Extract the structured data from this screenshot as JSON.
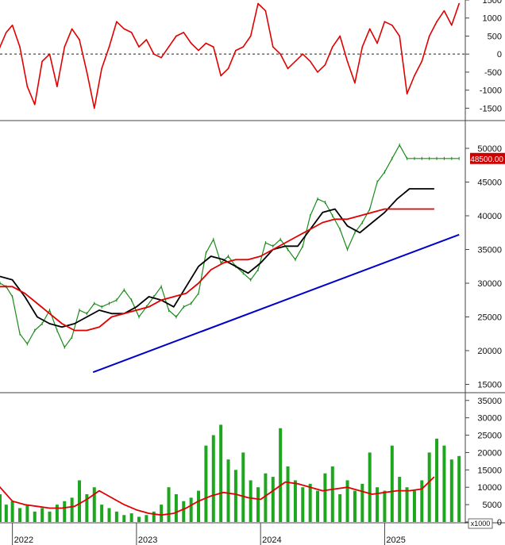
{
  "chart_data": [
    {
      "type": "line",
      "panel": "oscillator",
      "ylim": [
        -1800,
        1500
      ],
      "ticks": [
        "1500",
        "1000",
        "500",
        "0",
        "-500",
        "-1000",
        "-1500"
      ],
      "tick_values": [
        1500,
        1000,
        500,
        0,
        -500,
        -1000,
        -1500
      ],
      "reference_line": 0,
      "series": [
        {
          "color": "#e00000",
          "x": [
            2021.8,
            2021.85,
            2021.9,
            2021.95,
            2022.0,
            2022.06,
            2022.12,
            2022.18,
            2022.24,
            2022.3,
            2022.36,
            2022.42,
            2022.48,
            2022.54,
            2022.6,
            2022.66,
            2022.72,
            2022.78,
            2022.84,
            2022.9,
            2022.96,
            2023.02,
            2023.08,
            2023.14,
            2023.2,
            2023.26,
            2023.32,
            2023.38,
            2023.44,
            2023.5,
            2023.56,
            2023.62,
            2023.68,
            2023.74,
            2023.8,
            2023.86,
            2023.92,
            2023.98,
            2024.04,
            2024.1,
            2024.16,
            2024.22,
            2024.28,
            2024.34,
            2024.4,
            2024.46,
            2024.52,
            2024.58,
            2024.64,
            2024.7,
            2024.76,
            2024.82,
            2024.88,
            2024.94,
            2025.0,
            2025.06,
            2025.12,
            2025.18,
            2025.24,
            2025.3,
            2025.36,
            2025.42,
            2025.48,
            2025.54,
            2025.6
          ],
          "values": [
            -600,
            -300,
            200,
            600,
            800,
            200,
            -900,
            -1400,
            -200,
            0,
            -900,
            200,
            700,
            400,
            -500,
            -1500,
            -400,
            200,
            900,
            700,
            600,
            200,
            400,
            0,
            -100,
            200,
            500,
            600,
            300,
            100,
            300,
            200,
            -600,
            -400,
            100,
            200,
            500,
            1400,
            1200,
            200,
            0,
            -400,
            -200,
            0,
            -200,
            -500,
            -300,
            200,
            500,
            -200,
            -800,
            200,
            700,
            300,
            900,
            800,
            500,
            -1100,
            -600,
            -200,
            500,
            900,
            1200,
            800,
            1400
          ]
        }
      ]
    },
    {
      "type": "line",
      "panel": "price",
      "ylim": [
        14000,
        54000
      ],
      "ticks": [
        "50000",
        "45000",
        "40000",
        "35000",
        "30000",
        "25000",
        "20000",
        "15000"
      ],
      "tick_values": [
        50000,
        45000,
        40000,
        35000,
        30000,
        25000,
        20000,
        15000
      ],
      "last_price_label": "48500.00",
      "last_price_color": "#cc0000",
      "series": [
        {
          "color": "#1a8c1a",
          "x": [
            2021.8,
            2021.85,
            2021.9,
            2021.95,
            2022.0,
            2022.06,
            2022.12,
            2022.18,
            2022.24,
            2022.3,
            2022.36,
            2022.42,
            2022.48,
            2022.54,
            2022.6,
            2022.66,
            2022.72,
            2022.78,
            2022.84,
            2022.9,
            2022.96,
            2023.02,
            2023.08,
            2023.14,
            2023.2,
            2023.26,
            2023.32,
            2023.38,
            2023.44,
            2023.5,
            2023.56,
            2023.62,
            2023.68,
            2023.74,
            2023.8,
            2023.86,
            2023.92,
            2023.98,
            2024.04,
            2024.1,
            2024.16,
            2024.22,
            2024.28,
            2024.34,
            2024.4,
            2024.46,
            2024.52,
            2024.58,
            2024.64,
            2024.7,
            2024.76,
            2024.82,
            2024.88,
            2024.94,
            2025.0,
            2025.06,
            2025.12,
            2025.18,
            2025.24,
            2025.3,
            2025.36,
            2025.42,
            2025.48,
            2025.54,
            2025.6
          ],
          "values": [
            31000,
            33000,
            30000,
            29500,
            28000,
            22500,
            21000,
            23000,
            24000,
            26000,
            23000,
            20500,
            22000,
            26000,
            25500,
            27000,
            26500,
            27000,
            27500,
            29000,
            27500,
            25000,
            26500,
            28000,
            29500,
            26000,
            25000,
            26500,
            27000,
            28500,
            34500,
            36500,
            33000,
            34000,
            32500,
            31500,
            30500,
            32000,
            36000,
            35500,
            36500,
            35000,
            33500,
            35500,
            40000,
            42500,
            42000,
            40000,
            38000,
            35000,
            37500,
            39000,
            41000,
            45000,
            46500,
            48500,
            50500,
            48500,
            48500,
            48500,
            48500,
            48500,
            48500,
            48500,
            48500
          ]
        },
        {
          "color": "#000000",
          "x": [
            2021.8,
            2021.9,
            2022.0,
            2022.1,
            2022.2,
            2022.3,
            2022.4,
            2022.5,
            2022.6,
            2022.7,
            2022.8,
            2022.9,
            2023.0,
            2023.1,
            2023.2,
            2023.3,
            2023.4,
            2023.5,
            2023.6,
            2023.7,
            2023.8,
            2023.9,
            2024.0,
            2024.1,
            2024.2,
            2024.3,
            2024.4,
            2024.5,
            2024.6,
            2024.7,
            2024.8,
            2024.9,
            2025.0,
            2025.1,
            2025.2,
            2025.3,
            2025.4
          ],
          "values": [
            30000,
            31000,
            30500,
            28000,
            25000,
            24000,
            23500,
            24000,
            25000,
            26000,
            25500,
            25500,
            26500,
            28000,
            27500,
            26500,
            29500,
            32500,
            34000,
            33500,
            32500,
            31500,
            33000,
            35000,
            35500,
            35500,
            38000,
            40500,
            41000,
            38500,
            37500,
            39000,
            40500,
            42500,
            44000,
            44000,
            44000
          ]
        },
        {
          "color": "#e00000",
          "x": [
            2021.8,
            2021.9,
            2022.0,
            2022.1,
            2022.2,
            2022.3,
            2022.4,
            2022.5,
            2022.6,
            2022.7,
            2022.8,
            2022.9,
            2023.0,
            2023.1,
            2023.2,
            2023.3,
            2023.4,
            2023.5,
            2023.6,
            2023.7,
            2023.8,
            2023.9,
            2024.0,
            2024.1,
            2024.2,
            2024.3,
            2024.4,
            2024.5,
            2024.6,
            2024.7,
            2024.8,
            2024.9,
            2025.0,
            2025.1,
            2025.2,
            2025.3,
            2025.4
          ],
          "values": [
            28000,
            29500,
            29500,
            28500,
            27000,
            25500,
            24000,
            23000,
            23000,
            23500,
            25000,
            25500,
            26000,
            26500,
            27500,
            28000,
            28500,
            30000,
            32000,
            33000,
            33500,
            33500,
            34000,
            35000,
            36000,
            37000,
            38000,
            39000,
            39500,
            39500,
            40000,
            40500,
            41000,
            41000,
            41000,
            41000,
            41000
          ]
        },
        {
          "color": "#0000cc",
          "x": [
            2022.65,
            2025.6
          ],
          "values": [
            16800,
            37200
          ]
        }
      ]
    },
    {
      "type": "bar",
      "panel": "volume",
      "ylim": [
        0,
        37000
      ],
      "ticks": [
        "35000",
        "30000",
        "25000",
        "20000",
        "15000",
        "10000",
        "5000",
        "0"
      ],
      "tick_values": [
        35000,
        30000,
        25000,
        20000,
        15000,
        10000,
        5000,
        0
      ],
      "unit_label": "x1000",
      "bar_color": "#1ea61e",
      "x": [
        2021.8,
        2021.85,
        2021.9,
        2021.95,
        2022.0,
        2022.06,
        2022.12,
        2022.18,
        2022.24,
        2022.3,
        2022.36,
        2022.42,
        2022.48,
        2022.54,
        2022.6,
        2022.66,
        2022.72,
        2022.78,
        2022.84,
        2022.9,
        2022.96,
        2023.02,
        2023.08,
        2023.14,
        2023.2,
        2023.26,
        2023.32,
        2023.38,
        2023.44,
        2023.5,
        2023.56,
        2023.62,
        2023.68,
        2023.74,
        2023.8,
        2023.86,
        2023.92,
        2023.98,
        2024.04,
        2024.1,
        2024.16,
        2024.22,
        2024.28,
        2024.34,
        2024.4,
        2024.46,
        2024.52,
        2024.58,
        2024.64,
        2024.7,
        2024.76,
        2024.82,
        2024.88,
        2024.94,
        2025.0,
        2025.06,
        2025.12,
        2025.18,
        2025.24,
        2025.3,
        2025.36,
        2025.42,
        2025.48,
        2025.54,
        2025.6
      ],
      "values": [
        28000,
        20000,
        8000,
        5000,
        6000,
        4000,
        5000,
        3000,
        4000,
        3000,
        5000,
        6000,
        7000,
        12000,
        8000,
        10000,
        5000,
        4000,
        3000,
        2000,
        2500,
        1500,
        2000,
        3000,
        5000,
        10000,
        8000,
        6000,
        7000,
        9000,
        22000,
        25000,
        28000,
        18000,
        15000,
        20000,
        12000,
        10000,
        14000,
        13000,
        27000,
        16000,
        12000,
        10000,
        11000,
        9000,
        14000,
        16000,
        8000,
        12000,
        9000,
        11000,
        20000,
        10000,
        9000,
        22000,
        13000,
        10000,
        9000,
        12000,
        20000,
        24000,
        22000,
        18000,
        19000
      ],
      "ma": {
        "color": "#e00000",
        "x": [
          2021.8,
          2021.9,
          2022.0,
          2022.1,
          2022.2,
          2022.3,
          2022.4,
          2022.5,
          2022.6,
          2022.7,
          2022.8,
          2022.9,
          2023.0,
          2023.1,
          2023.2,
          2023.3,
          2023.4,
          2023.5,
          2023.6,
          2023.7,
          2023.8,
          2023.9,
          2024.0,
          2024.1,
          2024.2,
          2024.3,
          2024.4,
          2024.5,
          2024.6,
          2024.7,
          2024.8,
          2024.9,
          2025.0,
          2025.1,
          2025.2,
          2025.3,
          2025.4
        ],
        "values": [
          14000,
          10000,
          6000,
          5000,
          4500,
          4000,
          4000,
          4500,
          6500,
          9000,
          7000,
          5000,
          3500,
          2500,
          2000,
          2500,
          4000,
          6000,
          7500,
          8500,
          8000,
          7000,
          6500,
          9000,
          11500,
          11000,
          10000,
          9000,
          9500,
          10000,
          9000,
          8000,
          8500,
          9000,
          9000,
          9500,
          13000
        ]
      }
    }
  ],
  "x_axis": {
    "ticks": [
      "2022",
      "2023",
      "2024",
      "2025"
    ],
    "tick_values": [
      2022.0,
      2023.0,
      2024.0,
      2025.0
    ],
    "xlim": [
      2021.9,
      2025.65
    ]
  }
}
